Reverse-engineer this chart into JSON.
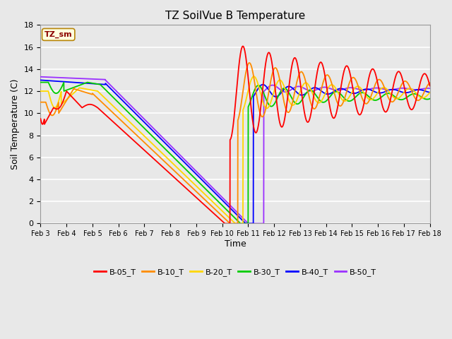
{
  "title": "TZ SoilVue B Temperature",
  "xlabel": "Time",
  "ylabel": "Soil Temperature (C)",
  "ylim": [
    0,
    18
  ],
  "bg_color": "#E8E8E8",
  "grid_color": "#FFFFFF",
  "tick_labels": [
    "Feb 3",
    "Feb 4",
    "Feb 5",
    "Feb 6",
    "Feb 7",
    "Feb 8",
    "Feb 9",
    "Feb 10",
    "Feb 11",
    "Feb 12",
    "Feb 13",
    "Feb 14",
    "Feb 15",
    "Feb 16",
    "Feb 17",
    "Feb 18"
  ],
  "series_colors": [
    "#FF0000",
    "#FF8C00",
    "#FFD700",
    "#00CC00",
    "#0000FF",
    "#9B30FF"
  ],
  "series_labels": [
    "B-05_T",
    "B-10_T",
    "B-20_T",
    "B-30_T",
    "B-40_T",
    "B-50_T"
  ],
  "legend_box_label": "TZ_sm",
  "legend_box_color": "#FFFFE0",
  "legend_box_edge": "#B8860B",
  "legend_text_color": "#8B0000"
}
